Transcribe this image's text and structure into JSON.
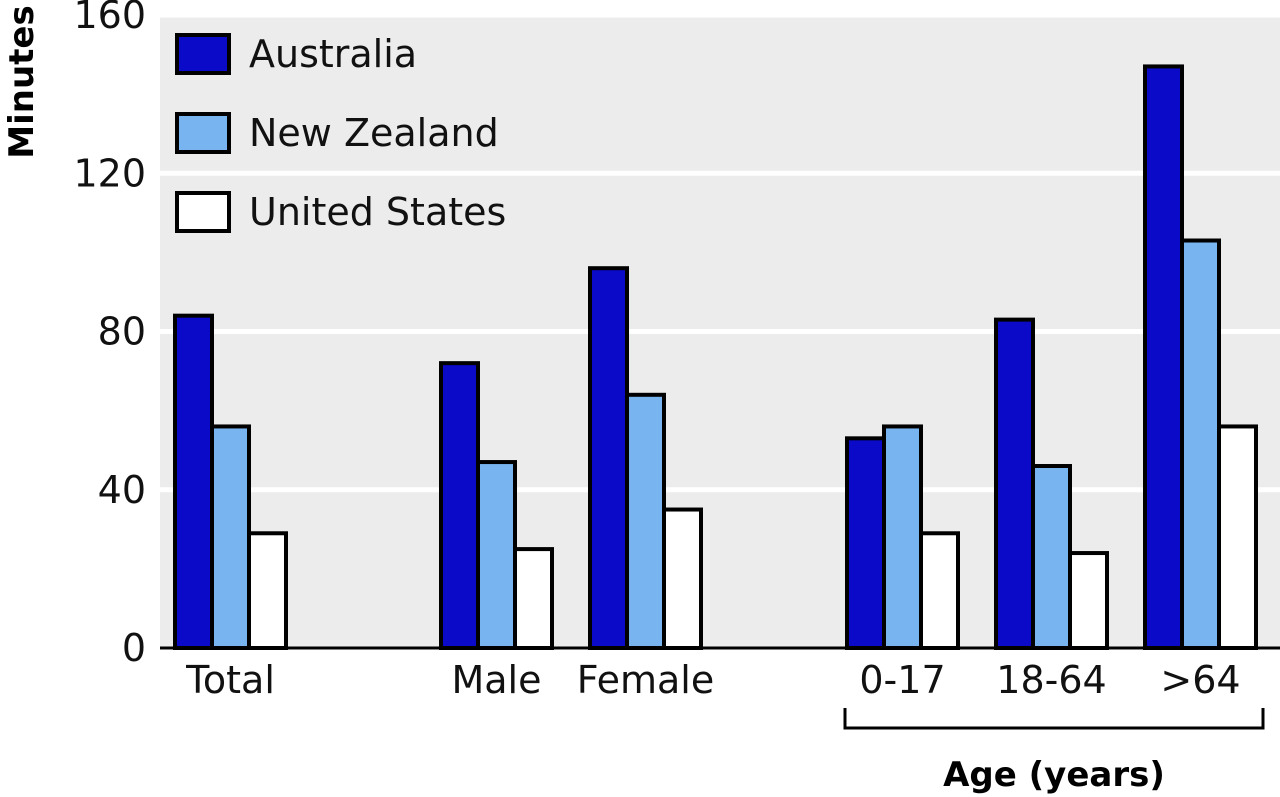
{
  "chart_data": {
    "type": "bar",
    "title": "",
    "ylabel": "Minutes",
    "xlabel": "",
    "ylim": [
      0,
      160
    ],
    "yticks": [
      0,
      40,
      80,
      120,
      160
    ],
    "grid": true,
    "legend_position": "top-left",
    "categories": [
      "Total",
      "Male",
      "Female",
      "0-17",
      "18-64",
      ">64"
    ],
    "groups": [
      {
        "label": "Age (years)",
        "categories": [
          "0-17",
          "18-64",
          ">64"
        ]
      }
    ],
    "series": [
      {
        "name": "Australia",
        "color": "#0a0ac8",
        "values": [
          84,
          72,
          96,
          53,
          83,
          147
        ]
      },
      {
        "name": "New Zealand",
        "color": "#78b4f0",
        "values": [
          56,
          47,
          64,
          56,
          46,
          103
        ]
      },
      {
        "name": "United States",
        "color": "#ffffff",
        "values": [
          29,
          25,
          35,
          29,
          24,
          56
        ]
      }
    ]
  }
}
